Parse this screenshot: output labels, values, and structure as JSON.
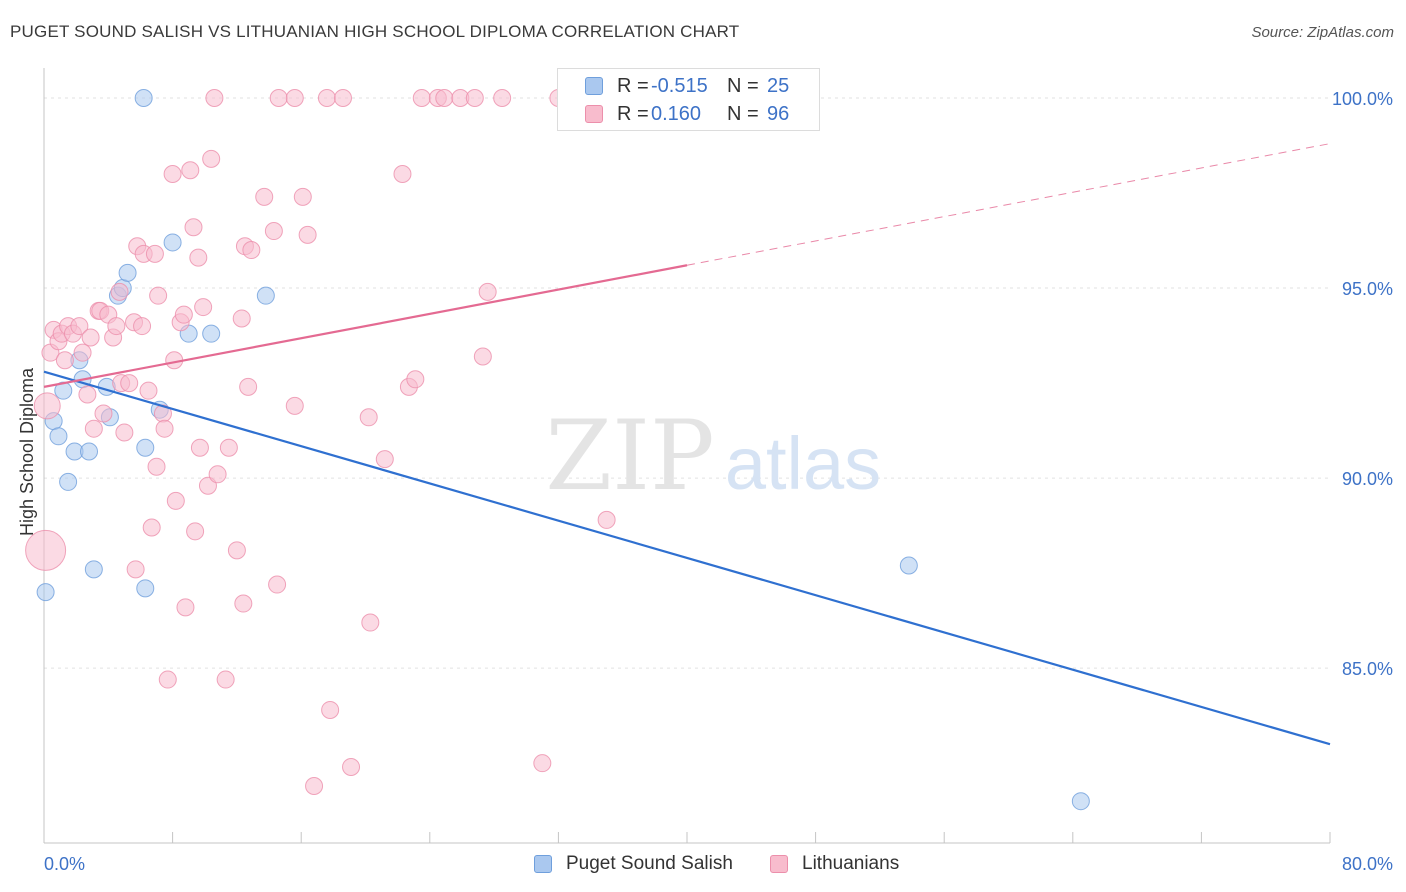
{
  "header": {
    "title": "PUGET SOUND SALISH VS LITHUANIAN HIGH SCHOOL DIPLOMA CORRELATION CHART",
    "source": "Source: ZipAtlas.com"
  },
  "watermark": {
    "zip": "ZIP",
    "atlas": "atlas"
  },
  "legend": {
    "r_label": "R =",
    "n_label": "N =",
    "items": [
      {
        "name": "Puget Sound Salish",
        "r": "-0.515",
        "n": "25",
        "fill": "#aac8ef",
        "stroke": "#6f9fdc"
      },
      {
        "name": "Lithuanians",
        "r": "0.160",
        "n": "96",
        "fill": "#f8bccd",
        "stroke": "#ec8fab"
      }
    ]
  },
  "colors": {
    "blue_line": "#2f70d0",
    "pink_line": "#e46a92",
    "axis_text": "#3d72c7",
    "grid": "#e2e2e2"
  },
  "chart_data": {
    "type": "scatter",
    "title": "PUGET SOUND SALISH VS LITHUANIAN HIGH SCHOOL DIPLOMA CORRELATION CHART",
    "xlabel": "",
    "ylabel": "High School Diploma",
    "xlim": [
      0,
      80
    ],
    "ylim": [
      80.4,
      101.0
    ],
    "x_tick_labels": [
      "0.0%",
      "80.0%"
    ],
    "y_ticks": [
      100,
      95,
      90,
      85
    ],
    "y_tick_labels": [
      "100.0%",
      "95.0%",
      "90.0%",
      "85.0%"
    ],
    "grid": true,
    "legend_position": "top-center",
    "series": [
      {
        "name": "Puget Sound Salish",
        "color": "#aac8ef",
        "trend": {
          "x0": 0,
          "y0": 92.8,
          "x1": 80,
          "y1": 83.0
        },
        "points": [
          [
            0.1,
            87.0
          ],
          [
            0.6,
            91.5
          ],
          [
            0.9,
            91.1
          ],
          [
            1.2,
            92.3
          ],
          [
            1.5,
            89.9
          ],
          [
            1.9,
            90.7
          ],
          [
            2.2,
            93.1
          ],
          [
            2.4,
            92.6
          ],
          [
            2.8,
            90.7
          ],
          [
            3.1,
            87.6
          ],
          [
            3.9,
            92.4
          ],
          [
            4.1,
            91.6
          ],
          [
            4.6,
            94.8
          ],
          [
            4.9,
            95.0
          ],
          [
            5.2,
            95.4
          ],
          [
            6.2,
            100.0
          ],
          [
            6.3,
            87.1
          ],
          [
            6.3,
            90.8
          ],
          [
            7.2,
            91.8
          ],
          [
            8.0,
            96.2
          ],
          [
            9.0,
            93.8
          ],
          [
            10.4,
            93.8
          ],
          [
            13.8,
            94.8
          ],
          [
            53.8,
            87.7
          ],
          [
            64.5,
            81.5
          ]
        ]
      },
      {
        "name": "Lithuanians",
        "color": "#f8bccd",
        "trend": {
          "x0": 0,
          "y0": 92.4,
          "x1": 40,
          "y1": 95.6,
          "dash_x1": 80,
          "dash_y1": 98.8
        },
        "points": [
          [
            0.1,
            88.1
          ],
          [
            0.2,
            91.9
          ],
          [
            0.4,
            93.3
          ],
          [
            0.6,
            93.9
          ],
          [
            0.9,
            93.6
          ],
          [
            1.1,
            93.8
          ],
          [
            1.3,
            93.1
          ],
          [
            1.5,
            94.0
          ],
          [
            1.8,
            93.8
          ],
          [
            2.2,
            94.0
          ],
          [
            2.4,
            93.3
          ],
          [
            2.7,
            92.2
          ],
          [
            2.9,
            93.7
          ],
          [
            3.1,
            91.3
          ],
          [
            3.4,
            94.4
          ],
          [
            3.5,
            94.4
          ],
          [
            3.7,
            91.7
          ],
          [
            4.0,
            94.3
          ],
          [
            4.3,
            93.7
          ],
          [
            4.5,
            94.0
          ],
          [
            4.7,
            94.9
          ],
          [
            4.8,
            92.5
          ],
          [
            5.0,
            91.2
          ],
          [
            5.3,
            92.5
          ],
          [
            5.6,
            94.1
          ],
          [
            5.7,
            87.6
          ],
          [
            5.8,
            96.1
          ],
          [
            6.1,
            94.0
          ],
          [
            6.2,
            95.9
          ],
          [
            6.5,
            92.3
          ],
          [
            6.7,
            88.7
          ],
          [
            6.9,
            95.9
          ],
          [
            7.0,
            90.3
          ],
          [
            7.1,
            94.8
          ],
          [
            7.4,
            91.7
          ],
          [
            7.5,
            91.3
          ],
          [
            7.7,
            84.7
          ],
          [
            8.0,
            98.0
          ],
          [
            8.1,
            93.1
          ],
          [
            8.2,
            89.4
          ],
          [
            8.5,
            94.1
          ],
          [
            8.7,
            94.3
          ],
          [
            8.8,
            86.6
          ],
          [
            9.1,
            98.1
          ],
          [
            9.3,
            96.6
          ],
          [
            9.4,
            88.6
          ],
          [
            9.6,
            95.8
          ],
          [
            9.7,
            90.8
          ],
          [
            9.9,
            94.5
          ],
          [
            10.2,
            89.8
          ],
          [
            10.4,
            98.4
          ],
          [
            10.6,
            100.0
          ],
          [
            10.8,
            90.1
          ],
          [
            11.3,
            84.7
          ],
          [
            11.5,
            90.8
          ],
          [
            12.0,
            88.1
          ],
          [
            12.3,
            94.2
          ],
          [
            12.4,
            86.7
          ],
          [
            12.5,
            96.1
          ],
          [
            12.7,
            92.4
          ],
          [
            12.9,
            96.0
          ],
          [
            13.7,
            97.4
          ],
          [
            14.3,
            96.5
          ],
          [
            14.5,
            87.2
          ],
          [
            14.6,
            100.0
          ],
          [
            15.6,
            91.9
          ],
          [
            15.6,
            100.0
          ],
          [
            16.1,
            97.4
          ],
          [
            16.4,
            96.4
          ],
          [
            16.8,
            81.9
          ],
          [
            17.6,
            100.0
          ],
          [
            17.8,
            83.9
          ],
          [
            18.6,
            100.0
          ],
          [
            19.1,
            82.4
          ],
          [
            20.2,
            91.6
          ],
          [
            20.3,
            86.2
          ],
          [
            21.2,
            90.5
          ],
          [
            22.3,
            98.0
          ],
          [
            22.7,
            92.4
          ],
          [
            23.1,
            92.6
          ],
          [
            23.5,
            100.0
          ],
          [
            24.5,
            100.0
          ],
          [
            24.9,
            100.0
          ],
          [
            25.9,
            100.0
          ],
          [
            26.8,
            100.0
          ],
          [
            27.3,
            93.2
          ],
          [
            27.6,
            94.9
          ],
          [
            28.5,
            100.0
          ],
          [
            31.0,
            82.5
          ],
          [
            32.0,
            100.0
          ],
          [
            34.4,
            100.0
          ],
          [
            35.0,
            88.9
          ],
          [
            37.5,
            100.0
          ],
          [
            38.0,
            100.0
          ],
          [
            38.5,
            100.0
          ],
          [
            39.2,
            100.0
          ]
        ]
      }
    ]
  }
}
